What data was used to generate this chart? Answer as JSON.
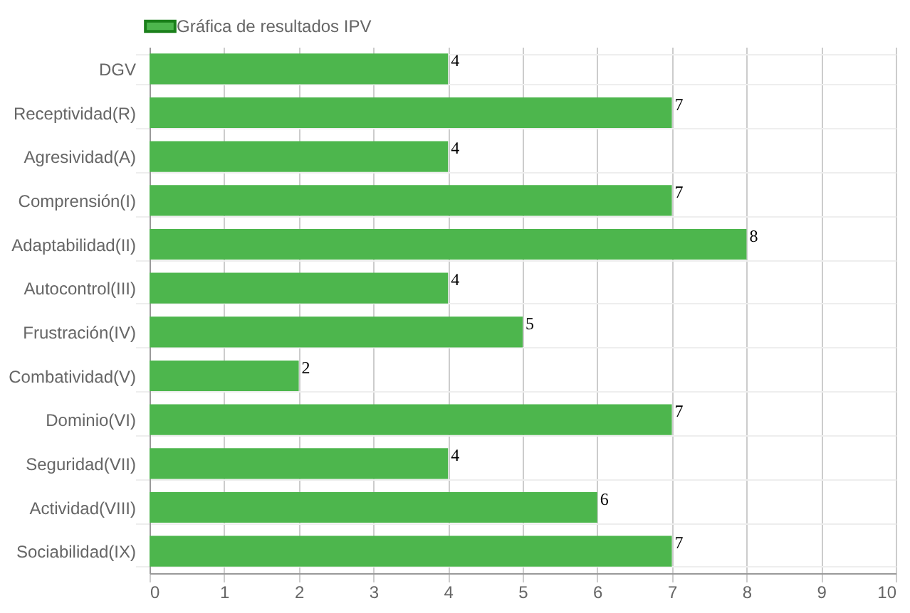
{
  "chart_data": {
    "type": "bar",
    "orientation": "horizontal",
    "categories": [
      "DGV",
      "Receptividad(R)",
      "Agresividad(A)",
      "Comprensión(I)",
      "Adaptabilidad(II)",
      "Autocontrol(III)",
      "Frustración(IV)",
      "Combatividad(V)",
      "Dominio(VI)",
      "Seguridad(VII)",
      "Actividad(VIII)",
      "Sociabilidad(IX)"
    ],
    "series": [
      {
        "name": "Gráfica de resultados IPV",
        "color": "#4db64d",
        "values": [
          4,
          7,
          4,
          7,
          8,
          4,
          5,
          2,
          7,
          4,
          6,
          7
        ]
      }
    ],
    "xlim": [
      0,
      10
    ],
    "xticks": [
      0,
      1,
      2,
      3,
      4,
      5,
      6,
      7,
      8,
      9,
      10
    ],
    "grid": true,
    "legend": "top",
    "data_labels": true
  }
}
